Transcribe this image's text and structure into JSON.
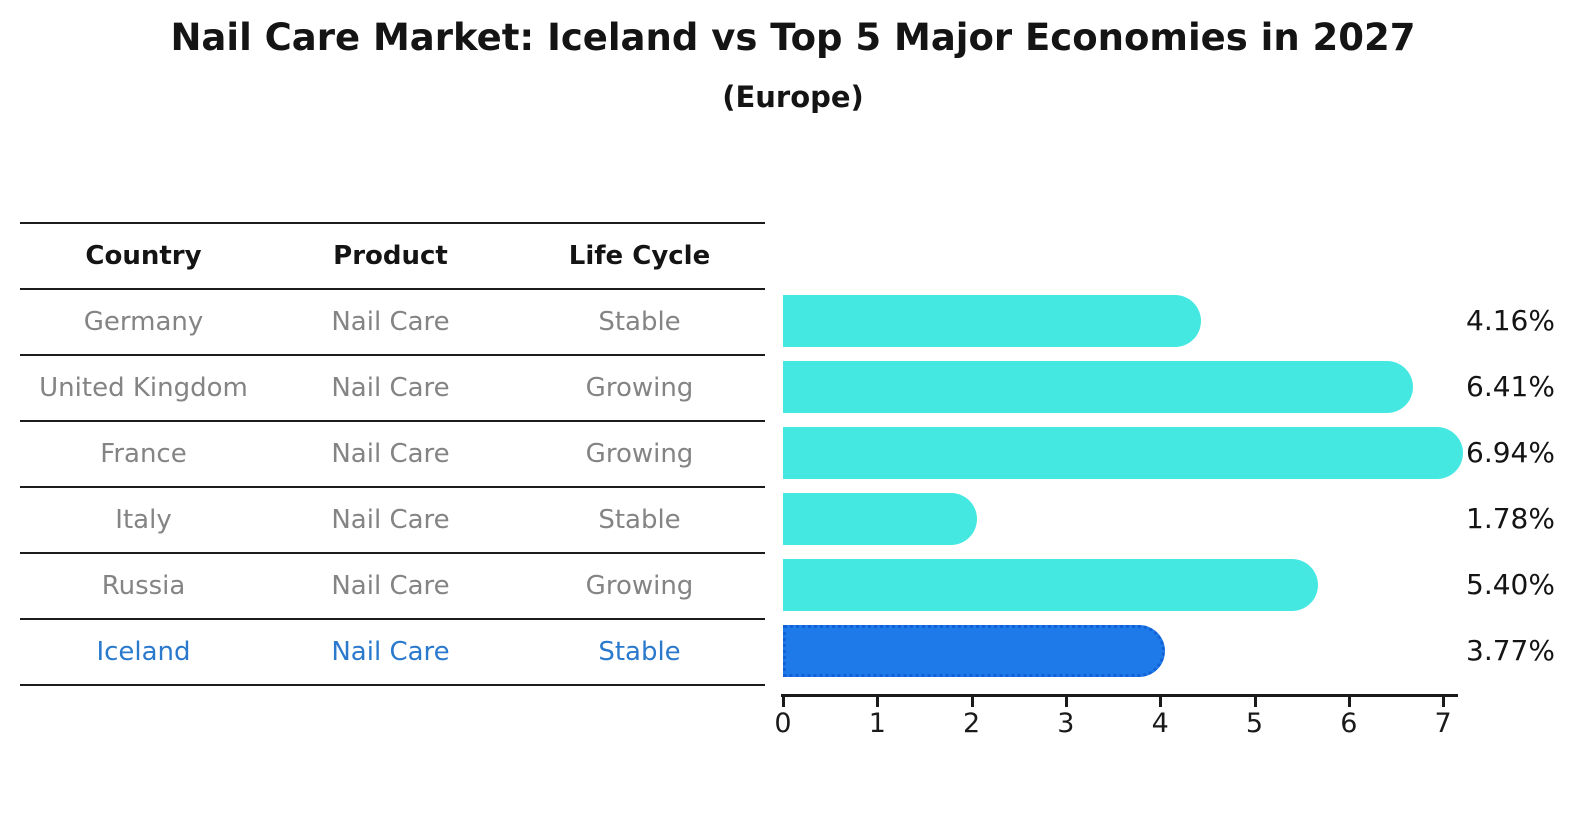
{
  "title": "Nail Care Market: Iceland vs Top 5 Major Economies in 2027",
  "subtitle": "(Europe)",
  "table": {
    "headers": [
      "Country",
      "Product",
      "Life Cycle"
    ],
    "rows": [
      {
        "country": "Germany",
        "product": "Nail Care",
        "life_cycle": "Stable",
        "highlighted": false
      },
      {
        "country": "United Kingdom",
        "product": "Nail Care",
        "life_cycle": "Growing",
        "highlighted": false
      },
      {
        "country": "France",
        "product": "Nail Care",
        "life_cycle": "Growing",
        "highlighted": false
      },
      {
        "country": "Italy",
        "product": "Nail Care",
        "life_cycle": "Stable",
        "highlighted": false
      },
      {
        "country": "Russia",
        "product": "Nail Care",
        "life_cycle": "Growing",
        "highlighted": false
      },
      {
        "country": "Iceland",
        "product": "Nail Care",
        "life_cycle": "Stable",
        "highlighted": true
      }
    ]
  },
  "chart_data": {
    "type": "bar",
    "orientation": "horizontal",
    "title": "Nail Care Market: Iceland vs Top 5 Major Economies in 2027",
    "subtitle": "(Europe)",
    "categories": [
      "Germany",
      "United Kingdom",
      "France",
      "Italy",
      "Russia",
      "Iceland"
    ],
    "values": [
      4.16,
      6.41,
      6.94,
      1.78,
      5.4,
      3.77
    ],
    "value_labels": [
      "4.16%",
      "6.41%",
      "6.94%",
      "1.78%",
      "5.40%",
      "3.77%"
    ],
    "highlight_index": 5,
    "x_ticks": [
      0,
      1,
      2,
      3,
      4,
      5,
      6,
      7
    ],
    "xlim": [
      0,
      7.16
    ],
    "grid": false,
    "legend": false,
    "bar_color": "#45e8e1",
    "highlight_bar_color": "#1e7ae8",
    "highlight_text_color": "#2a79cd",
    "axis_color": "#1a1a1a"
  }
}
